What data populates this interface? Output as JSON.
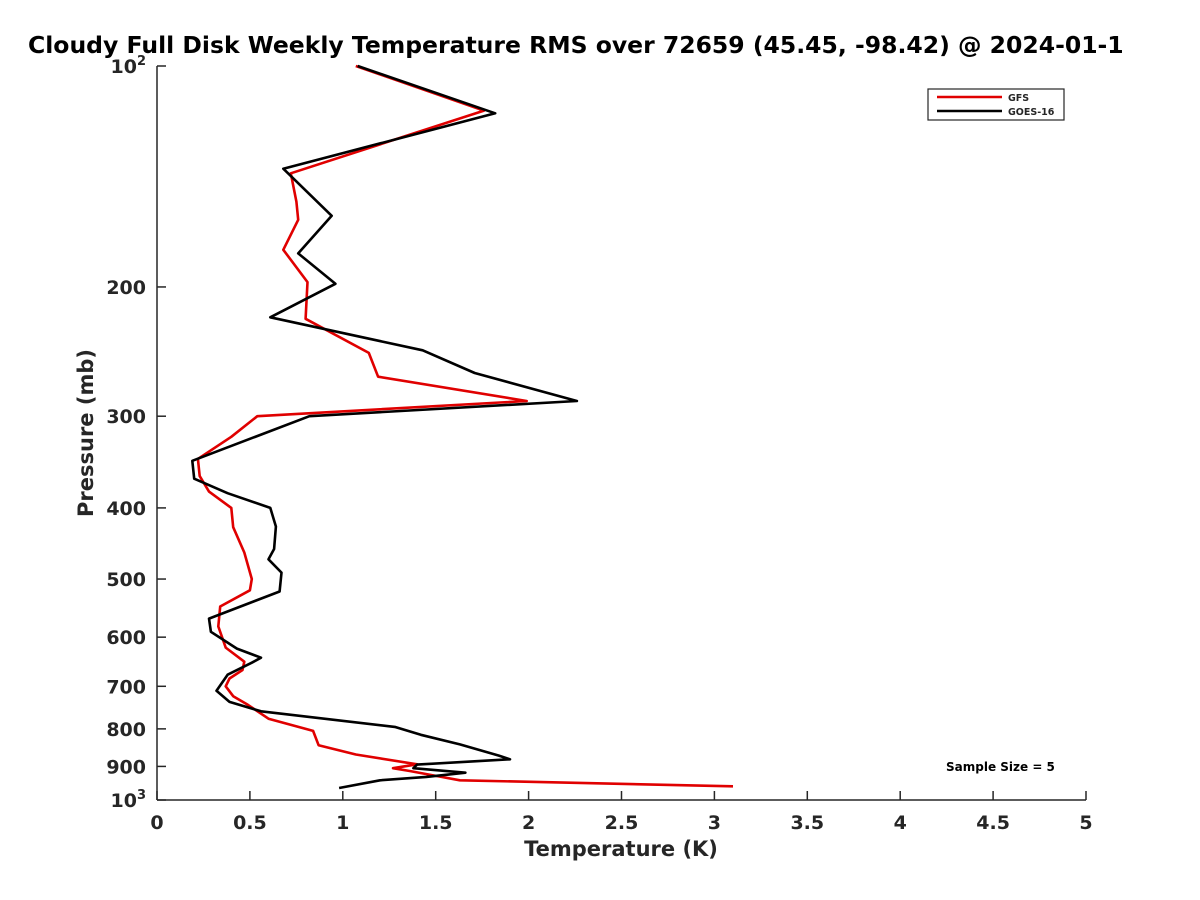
{
  "chart_data": {
    "type": "line",
    "title": "Cloudy Full Disk Weekly Temperature RMS over 72659 (45.45, -98.42) @ 2024-01-1",
    "xlabel": "Temperature (K)",
    "ylabel": "Pressure (mb)",
    "xlim": [
      0,
      5
    ],
    "ylim": [
      100,
      1000
    ],
    "yscale": "log",
    "y_reversed": true,
    "grid": false,
    "legend": "top-right",
    "x_ticks": [
      "0",
      "0.5",
      "1",
      "1.5",
      "2",
      "2.5",
      "3",
      "3.5",
      "4",
      "4.5",
      "5"
    ],
    "y_ticks": [
      {
        "value": 100,
        "base": "10",
        "exp": "2"
      },
      {
        "value": 200,
        "label": "200"
      },
      {
        "value": 300,
        "label": "300"
      },
      {
        "value": 400,
        "label": "400"
      },
      {
        "value": 500,
        "label": "500"
      },
      {
        "value": 600,
        "label": "600"
      },
      {
        "value": 700,
        "label": "700"
      },
      {
        "value": 800,
        "label": "800"
      },
      {
        "value": 900,
        "label": "900"
      },
      {
        "value": 1000,
        "base": "10",
        "exp": "3"
      }
    ],
    "annotation": "Sample Size = 5",
    "series": [
      {
        "name": "GFS",
        "color": "#e00000",
        "points": [
          [
            1.07,
            100
          ],
          [
            1.76,
            115
          ],
          [
            0.72,
            140
          ],
          [
            0.75,
            153
          ],
          [
            0.76,
            162
          ],
          [
            0.68,
            178
          ],
          [
            0.81,
            197
          ],
          [
            0.8,
            221
          ],
          [
            1.14,
            246
          ],
          [
            1.19,
            265
          ],
          [
            1.99,
            286
          ],
          [
            0.54,
            300
          ],
          [
            0.4,
            320
          ],
          [
            0.22,
            343
          ],
          [
            0.23,
            362
          ],
          [
            0.28,
            380
          ],
          [
            0.4,
            400
          ],
          [
            0.41,
            425
          ],
          [
            0.47,
            460
          ],
          [
            0.51,
            500
          ],
          [
            0.5,
            518
          ],
          [
            0.34,
            545
          ],
          [
            0.33,
            580
          ],
          [
            0.37,
            620
          ],
          [
            0.47,
            648
          ],
          [
            0.46,
            665
          ],
          [
            0.39,
            683
          ],
          [
            0.37,
            700
          ],
          [
            0.41,
            722
          ],
          [
            0.49,
            742
          ],
          [
            0.6,
            775
          ],
          [
            0.84,
            805
          ],
          [
            0.87,
            842
          ],
          [
            1.07,
            867
          ],
          [
            1.4,
            894
          ],
          [
            1.27,
            905
          ],
          [
            1.36,
            913
          ],
          [
            1.53,
            930
          ],
          [
            1.63,
            940
          ],
          [
            3.1,
            958
          ]
        ]
      },
      {
        "name": "GOES-16",
        "color": "#000000",
        "points": [
          [
            1.08,
            100
          ],
          [
            1.82,
            116
          ],
          [
            0.68,
            138
          ],
          [
            0.94,
            160
          ],
          [
            0.76,
            180
          ],
          [
            0.96,
            198
          ],
          [
            0.61,
            220
          ],
          [
            1.43,
            244
          ],
          [
            1.71,
            262
          ],
          [
            2.26,
            286
          ],
          [
            0.82,
            300
          ],
          [
            0.19,
            345
          ],
          [
            0.2,
            365
          ],
          [
            0.38,
            382
          ],
          [
            0.61,
            400
          ],
          [
            0.64,
            424
          ],
          [
            0.63,
            455
          ],
          [
            0.6,
            470
          ],
          [
            0.67,
            490
          ],
          [
            0.66,
            520
          ],
          [
            0.28,
            566
          ],
          [
            0.29,
            590
          ],
          [
            0.43,
            622
          ],
          [
            0.56,
            640
          ],
          [
            0.51,
            650
          ],
          [
            0.38,
            675
          ],
          [
            0.32,
            710
          ],
          [
            0.39,
            735
          ],
          [
            0.56,
            757
          ],
          [
            1.28,
            795
          ],
          [
            1.42,
            815
          ],
          [
            1.63,
            840
          ],
          [
            1.84,
            870
          ],
          [
            1.9,
            880
          ],
          [
            1.4,
            895
          ],
          [
            1.38,
            905
          ],
          [
            1.66,
            918
          ],
          [
            1.45,
            930
          ],
          [
            1.2,
            940
          ],
          [
            0.98,
            963
          ]
        ]
      }
    ]
  }
}
